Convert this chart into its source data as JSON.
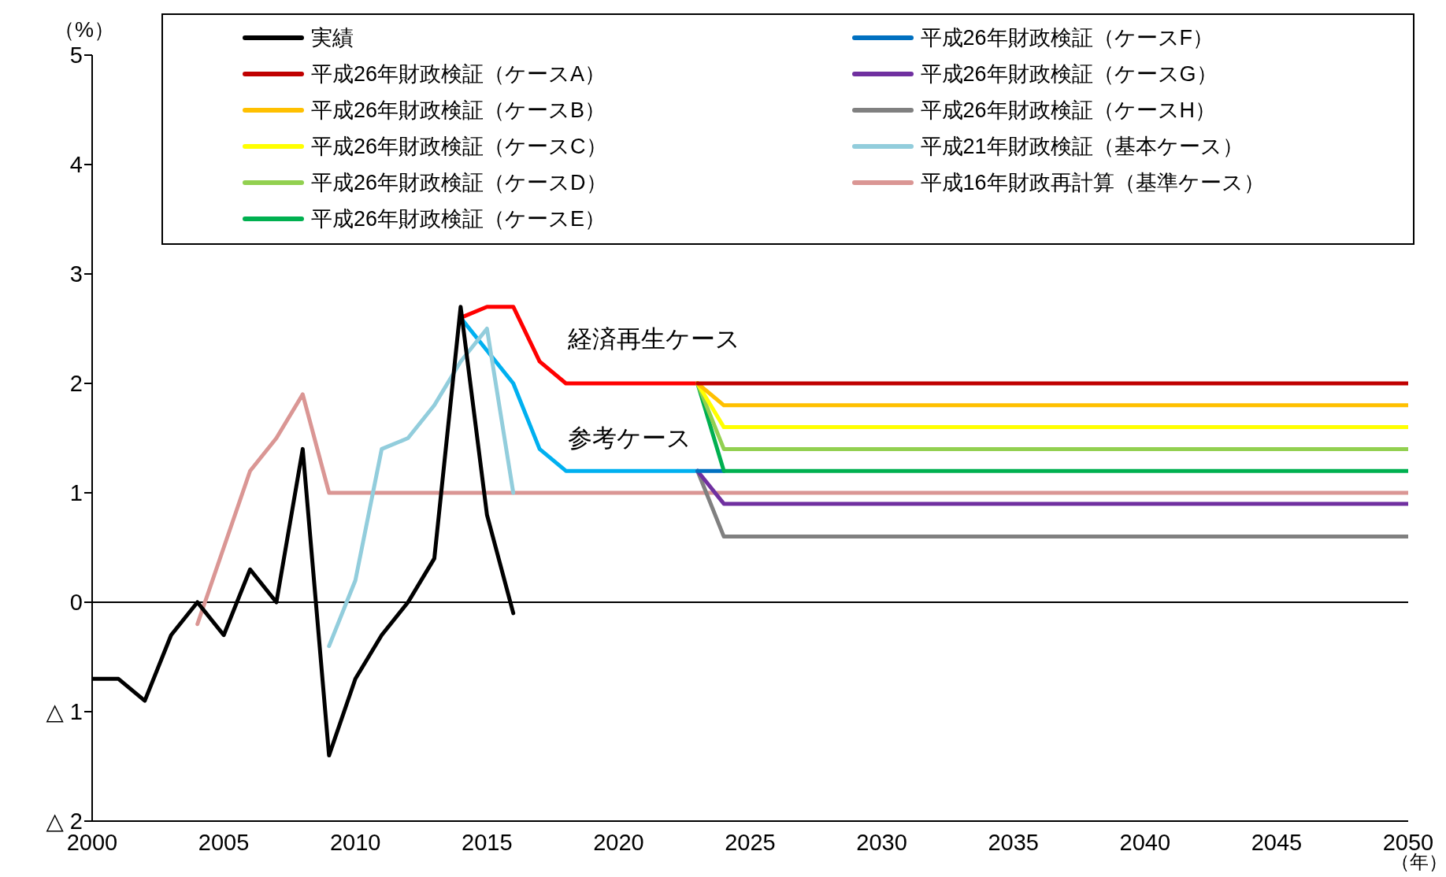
{
  "chart_data": {
    "type": "line",
    "ylabel": "（%）",
    "xlabel": "（年）",
    "xlim": [
      2000,
      2050
    ],
    "xticks": [
      2000,
      2005,
      2010,
      2015,
      2020,
      2025,
      2030,
      2035,
      2040,
      2045,
      2050
    ],
    "ylim": [
      -2,
      5
    ],
    "yticks": [
      {
        "value": -2,
        "label": "△ 2"
      },
      {
        "value": -1,
        "label": "△ 1"
      },
      0,
      1,
      2,
      3,
      4,
      5
    ],
    "legend": "top",
    "marker": "none",
    "line_style": "solid",
    "ref_lines": [
      {
        "axis": "y",
        "value": 0,
        "color": "#000000"
      }
    ],
    "annotations": [
      "経済再生ケース",
      "参考ケース"
    ],
    "series": [
      {
        "name": "実績",
        "color": "#000000",
        "x": [
          2000,
          2001,
          2002,
          2003,
          2004,
          2005,
          2006,
          2007,
          2008,
          2009,
          2010,
          2011,
          2012,
          2013,
          2014,
          2015,
          2016
        ],
        "values": [
          -0.7,
          -0.7,
          -0.9,
          -0.3,
          0,
          -0.3,
          0.3,
          0,
          1.4,
          -1.4,
          -0.7,
          -0.3,
          0,
          0.4,
          2.7,
          0.8,
          -0.1
        ]
      },
      {
        "name": "平成26年財政検証（ケースA）",
        "color": "#c00000",
        "x": [
          2023,
          2024,
          2050
        ],
        "values": [
          2.0,
          2.0,
          2.0
        ]
      },
      {
        "name": "平成26年財政検証（ケースB）",
        "color": "#ffc000",
        "x": [
          2023,
          2024,
          2050
        ],
        "values": [
          2.0,
          1.8,
          1.8
        ]
      },
      {
        "name": "平成26年財政検証（ケースC）",
        "color": "#ffff00",
        "x": [
          2023,
          2024,
          2050
        ],
        "values": [
          2.0,
          1.6,
          1.6
        ]
      },
      {
        "name": "平成26年財政検証（ケースD）",
        "color": "#92d050",
        "x": [
          2023,
          2024,
          2050
        ],
        "values": [
          2.0,
          1.4,
          1.4
        ]
      },
      {
        "name": "平成26年財政検証（ケースE）",
        "color": "#00b050",
        "x": [
          2023,
          2024,
          2050
        ],
        "values": [
          2.0,
          1.2,
          1.2
        ]
      },
      {
        "name": "平成26年財政検証（ケースF）",
        "color": "#0070c0",
        "x": [
          2023,
          2024
        ],
        "values": [
          1.2,
          1.2
        ]
      },
      {
        "name": "平成26年財政検証（ケースG）",
        "color": "#7030a0",
        "x": [
          2023,
          2024,
          2050
        ],
        "values": [
          1.2,
          0.9,
          0.9
        ]
      },
      {
        "name": "平成26年財政検証（ケースH）",
        "color": "#808080",
        "x": [
          2023,
          2024,
          2050
        ],
        "values": [
          1.2,
          0.6,
          0.6
        ]
      },
      {
        "name": "平成21年財政検証（基本ケース）",
        "color": "#92cddc",
        "x": [
          2009,
          2010,
          2011,
          2012,
          2013,
          2014,
          2015,
          2016
        ],
        "values": [
          -0.4,
          0.2,
          1.4,
          1.5,
          1.8,
          2.2,
          2.5,
          1.0
        ]
      },
      {
        "name": "平成16年財政再計算（基準ケース）",
        "color": "#da9694",
        "x": [
          2004,
          2005,
          2006,
          2007,
          2008,
          2009,
          2050
        ],
        "values": [
          -0.2,
          0.5,
          1.2,
          1.5,
          1.9,
          1.0,
          1.0
        ]
      },
      {
        "color": "#ff0000",
        "x": [
          2014,
          2015,
          2016,
          2017,
          2018,
          2023
        ],
        "values": [
          2.6,
          2.7,
          2.7,
          2.2,
          2.0,
          2.0
        ]
      },
      {
        "color": "#00b0f0",
        "x": [
          2014,
          2015,
          2016,
          2017,
          2018,
          2023
        ],
        "values": [
          2.6,
          2.3,
          2.0,
          1.4,
          1.2,
          1.2
        ]
      }
    ]
  }
}
